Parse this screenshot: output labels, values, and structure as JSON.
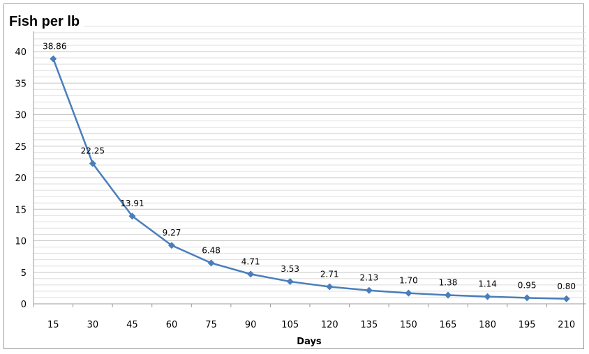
{
  "chart_data": {
    "type": "line",
    "title": "Fish per lb",
    "xlabel": "Days",
    "ylabel": "",
    "categories": [
      "15",
      "30",
      "45",
      "60",
      "75",
      "90",
      "105",
      "120",
      "135",
      "150",
      "165",
      "180",
      "195",
      "210"
    ],
    "series": [
      {
        "values": [
          38.86,
          22.25,
          13.91,
          9.27,
          6.48,
          4.71,
          3.53,
          2.71,
          2.13,
          1.7,
          1.38,
          1.14,
          0.95,
          0.8
        ]
      }
    ],
    "data_labels": [
      "38.86",
      "22.25",
      "13.91",
      "9.27",
      "6.48",
      "4.71",
      "3.53",
      "2.71",
      "2.13",
      "1.70",
      "1.38",
      "1.14",
      "0.95",
      "0.80"
    ],
    "y_ticks": [
      "0",
      "5",
      "10",
      "15",
      "20",
      "25",
      "30",
      "35",
      "40"
    ],
    "ylim": [
      0,
      40
    ],
    "minor_grid_step": 1,
    "grid": true,
    "legend": "none",
    "colors": {
      "line": "#4a7ebb",
      "marker": "#4a7ebb",
      "grid": "#cfcfcf",
      "axis": "#9a9a9a"
    }
  }
}
